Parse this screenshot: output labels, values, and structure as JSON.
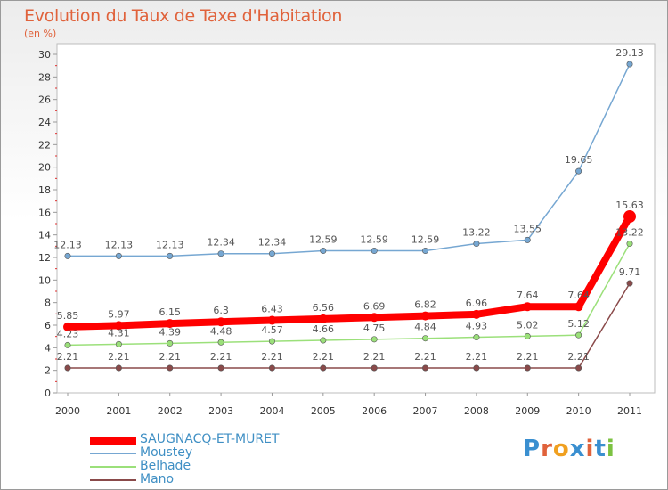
{
  "header": {
    "title": "Evolution du Taux de Taxe d'Habitation",
    "subtitle": "(en %)"
  },
  "logo": {
    "text": "Proxiti"
  },
  "chart_data": {
    "type": "line",
    "title": "Evolution du Taux de Taxe d'Habitation",
    "ylabel": "(en %)",
    "xlabel": "",
    "x": [
      "2000",
      "2001",
      "2002",
      "2003",
      "2004",
      "2005",
      "2006",
      "2007",
      "2008",
      "2009",
      "2010",
      "2011"
    ],
    "ylim": [
      0,
      30
    ],
    "yticks": [
      "0",
      "2",
      "4",
      "6",
      "8",
      "10",
      "12",
      "14",
      "16",
      "18",
      "20",
      "22",
      "24",
      "26",
      "28",
      "30"
    ],
    "grid": false,
    "legend": "bottom-left",
    "series": [
      {
        "name": "SAUGNACQ-ET-MURET",
        "color": "#ff0000",
        "values": [
          5.85,
          5.97,
          6.15,
          6.3,
          6.43,
          6.56,
          6.69,
          6.82,
          6.96,
          7.64,
          7.64,
          15.63
        ],
        "labels": [
          "5.85",
          "5.97",
          "6.15",
          "6.3",
          "6.43",
          "6.56",
          "6.69",
          "6.82",
          "6.96",
          "7.64",
          "7.64",
          "15.63"
        ]
      },
      {
        "name": "Moustey",
        "color": "#76a7d2",
        "values": [
          12.13,
          12.13,
          12.13,
          12.34,
          12.34,
          12.59,
          12.59,
          12.59,
          13.22,
          13.55,
          19.65,
          29.13
        ],
        "labels": [
          "12.13",
          "12.13",
          "12.13",
          "12.34",
          "12.34",
          "12.59",
          "12.59",
          "12.59",
          "13.22",
          "13.55",
          "19.65",
          "29.13"
        ]
      },
      {
        "name": "Belhade",
        "color": "#9be07a",
        "values": [
          4.23,
          4.31,
          4.39,
          4.48,
          4.57,
          4.66,
          4.75,
          4.84,
          4.93,
          5.02,
          5.12,
          13.22
        ],
        "labels": [
          "4.23",
          "4.31",
          "4.39",
          "4.48",
          "4.57",
          "4.66",
          "4.75",
          "4.84",
          "4.93",
          "5.02",
          "5.12",
          "13.22"
        ]
      },
      {
        "name": "Mano",
        "color": "#8a4a4a",
        "values": [
          2.21,
          2.21,
          2.21,
          2.21,
          2.21,
          2.21,
          2.21,
          2.21,
          2.21,
          2.21,
          2.21,
          9.71
        ],
        "labels": [
          "2.21",
          "2.21",
          "2.21",
          "2.21",
          "2.21",
          "2.21",
          "2.21",
          "2.21",
          "2.21",
          "2.21",
          "2.21",
          "9.71"
        ]
      }
    ]
  }
}
